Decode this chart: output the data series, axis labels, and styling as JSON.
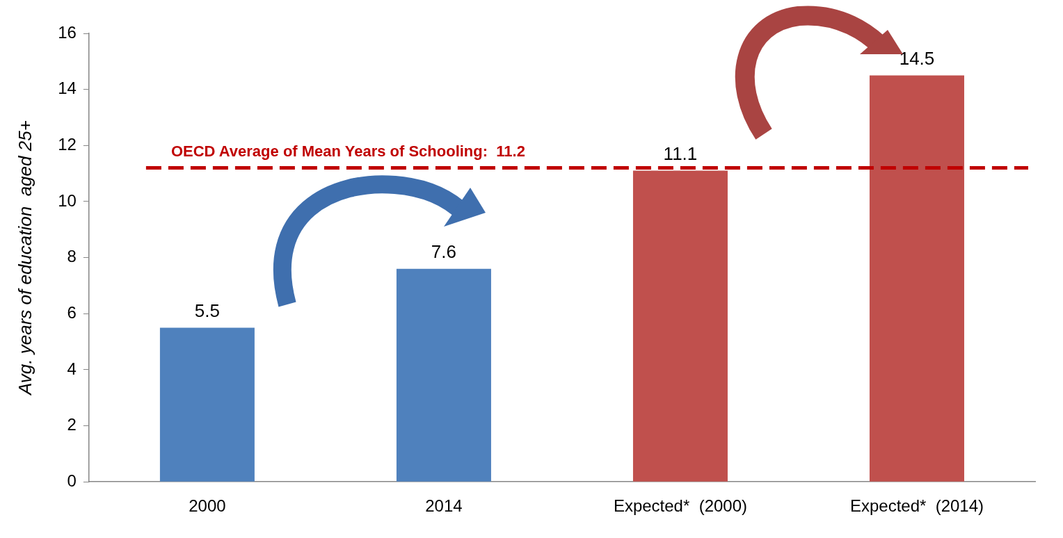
{
  "chart_data": {
    "type": "bar",
    "ylabel": "Avg. years of education  aged 25+",
    "categories": [
      "2000",
      "2014",
      "Expected*  (2000)",
      "Expected*  (2014)"
    ],
    "values": [
      5.5,
      7.6,
      11.1,
      14.5
    ],
    "colors": [
      "#4f81bd",
      "#4f81bd",
      "#c0504d",
      "#c0504d"
    ],
    "ylim": [
      0,
      16
    ],
    "yticks": [
      0,
      2,
      4,
      6,
      8,
      10,
      12,
      14,
      16
    ],
    "grid": false,
    "legend": false,
    "data_labels": true,
    "ref_lines": [
      {
        "axis": "y",
        "value": 11.2,
        "label": "OECD Average of Mean Years of Schooling:  11.2",
        "color": "#c00000",
        "line_style": "dashed"
      }
    ]
  }
}
